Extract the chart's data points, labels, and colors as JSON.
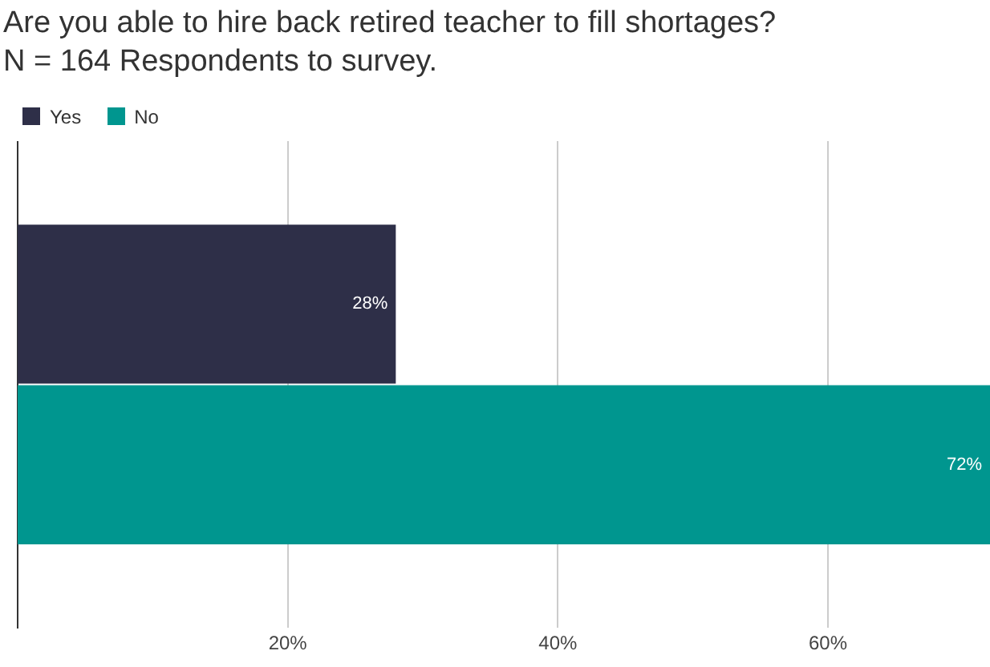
{
  "chart_data": {
    "type": "bar",
    "orientation": "horizontal",
    "title": "Are you able to hire back retired teacher to fill shortages?",
    "subtitle": "N = 164 Respondents to survey.",
    "categories": [
      null
    ],
    "series": [
      {
        "name": "Yes",
        "color": "#2e2f48",
        "values": [
          28
        ],
        "value_labels": [
          "28%"
        ]
      },
      {
        "name": "No",
        "color": "#00968f",
        "values": [
          72
        ],
        "value_labels": [
          "72%"
        ]
      }
    ],
    "xlim": [
      0,
      72
    ],
    "xticks": [
      {
        "value": 20,
        "label": "20%"
      },
      {
        "value": 40,
        "label": "40%"
      },
      {
        "value": 60,
        "label": "60%"
      }
    ],
    "grid": "x",
    "legend": "top left"
  }
}
